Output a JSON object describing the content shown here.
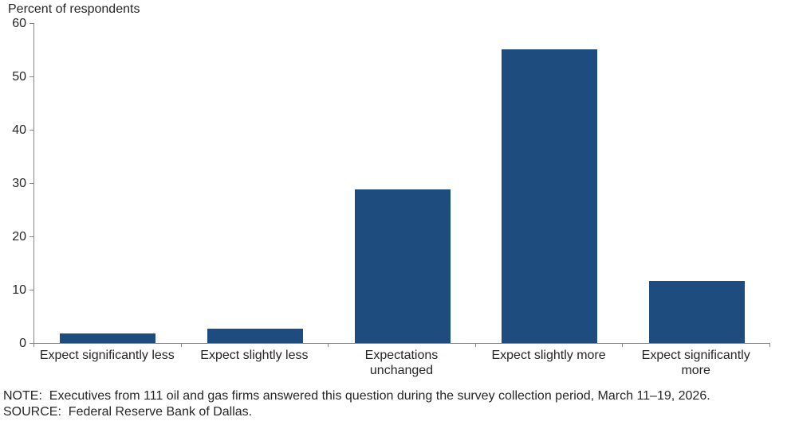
{
  "chart": {
    "title": "Percent of respondents",
    "note": "NOTE:  Executives from 111 oil and gas firms answered this question during the survey collection period, March 11–19, 2026.",
    "source": "SOURCE:  Federal Reserve Bank of Dallas."
  },
  "chart_data": {
    "type": "bar",
    "title": "Percent of respondents",
    "categories": [
      "Expect significantly less",
      "Expect slightly less",
      "Expectations unchanged",
      "Expect slightly more",
      "Expect significantly more"
    ],
    "categories_display": [
      "Expect significantly less",
      "Expect slightly less",
      "Expectations\nunchanged",
      "Expect slightly more",
      "Expect significantly\nmore"
    ],
    "values": [
      1.8,
      2.7,
      28.8,
      55,
      11.7
    ],
    "xlabel": "",
    "ylabel": "Percent of respondents",
    "ylim": [
      0,
      60
    ],
    "yticks": [
      0,
      10,
      20,
      30,
      40,
      50,
      60
    ],
    "grid": false,
    "legend": false,
    "colors": {
      "bar": "#1F4C7E",
      "axis": "#868686",
      "text": "#262626"
    }
  }
}
